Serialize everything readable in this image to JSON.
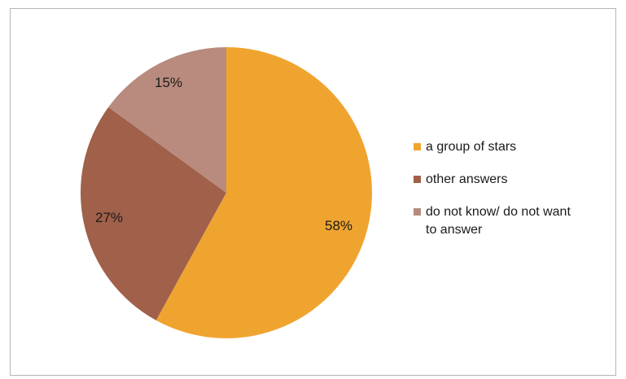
{
  "chart_data": {
    "type": "pie",
    "title": "",
    "legend_position": "right",
    "slices": [
      {
        "label": "a group of stars",
        "value": 58,
        "display": "58%",
        "color": "#f0a430"
      },
      {
        "label": "other answers",
        "value": 27,
        "display": "27%",
        "color": "#a0604a"
      },
      {
        "label": "do not know/ do not want to answer",
        "value": 15,
        "display": "15%",
        "color": "#b88b7e"
      }
    ]
  }
}
